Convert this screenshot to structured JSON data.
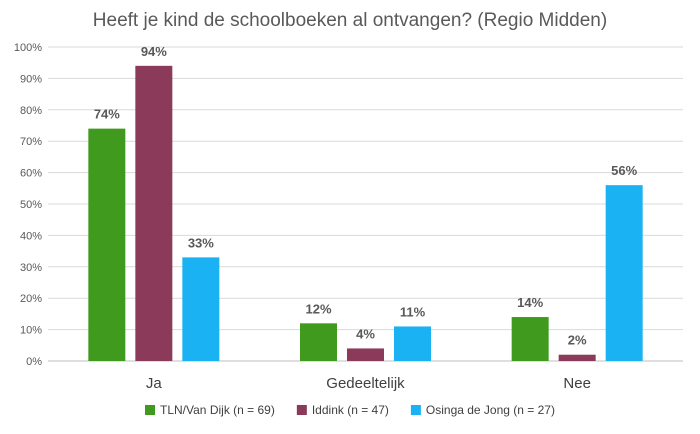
{
  "chart_data": {
    "type": "bar",
    "title": "Heeft je kind de schoolboeken al ontvangen? (Regio Midden)",
    "categories": [
      "Ja",
      "Gedeeltelijk",
      "Nee"
    ],
    "series": [
      {
        "name": "TLN/Van Dijk (n = 69)",
        "color": "#3f9a1e",
        "values": [
          74,
          12,
          14
        ],
        "labels": [
          "74%",
          "12%",
          "14%"
        ]
      },
      {
        "name": "Iddink (n = 47)",
        "color": "#8b3a5a",
        "values": [
          94,
          4,
          2
        ],
        "labels": [
          "94%",
          "4%",
          "2%"
        ]
      },
      {
        "name": "Osinga de Jong (n = 27)",
        "color": "#1ab2f2",
        "values": [
          33,
          11,
          56
        ],
        "labels": [
          "33%",
          "11%",
          "56%"
        ]
      }
    ],
    "y_ticks": [
      "0%",
      "10%",
      "20%",
      "30%",
      "40%",
      "50%",
      "60%",
      "70%",
      "80%",
      "90%",
      "100%"
    ],
    "ylim": [
      0,
      100
    ],
    "grid": true,
    "legend_position": "bottom"
  }
}
